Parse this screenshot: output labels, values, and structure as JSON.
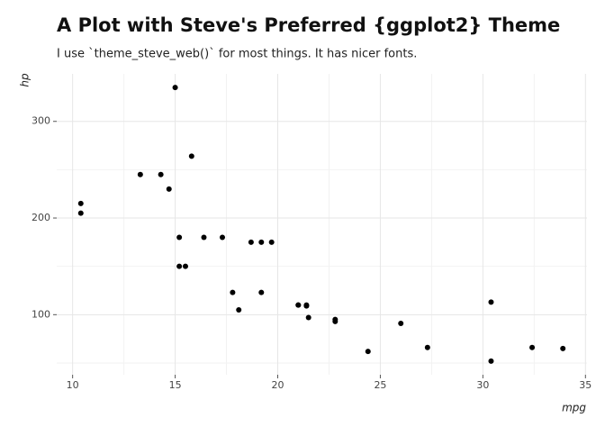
{
  "chart_data": {
    "type": "scatter",
    "title": "A Plot with Steve's Preferred {ggplot2} Theme",
    "subtitle": "I use `theme_steve_web()` for most things. It has nicer fonts.",
    "x_label": "mpg",
    "y_label": "hp",
    "x": [
      21.0,
      21.0,
      22.8,
      21.4,
      18.7,
      18.1,
      14.3,
      24.4,
      22.8,
      19.2,
      17.8,
      16.4,
      17.3,
      15.2,
      10.4,
      10.4,
      14.7,
      32.4,
      30.4,
      33.9,
      21.5,
      15.5,
      15.2,
      13.3,
      19.2,
      27.3,
      26.0,
      30.4,
      15.8,
      19.7,
      15.0,
      21.4
    ],
    "values": [
      110,
      110,
      93,
      110,
      175,
      105,
      245,
      62,
      95,
      123,
      123,
      180,
      180,
      180,
      205,
      215,
      230,
      66,
      52,
      65,
      97,
      150,
      150,
      245,
      175,
      66,
      91,
      113,
      264,
      175,
      335,
      109
    ],
    "color": "#000000",
    "xlim": [
      9.225,
      35.075
    ],
    "ylim": [
      37.85,
      349.15
    ],
    "xticks": [
      10,
      15,
      20,
      25,
      30,
      35
    ],
    "yticks": [
      100,
      200,
      300
    ],
    "xminor": [
      12.5,
      17.5,
      22.5,
      27.5,
      32.5
    ],
    "yminor": [
      50,
      150,
      250
    ],
    "grid": true
  }
}
